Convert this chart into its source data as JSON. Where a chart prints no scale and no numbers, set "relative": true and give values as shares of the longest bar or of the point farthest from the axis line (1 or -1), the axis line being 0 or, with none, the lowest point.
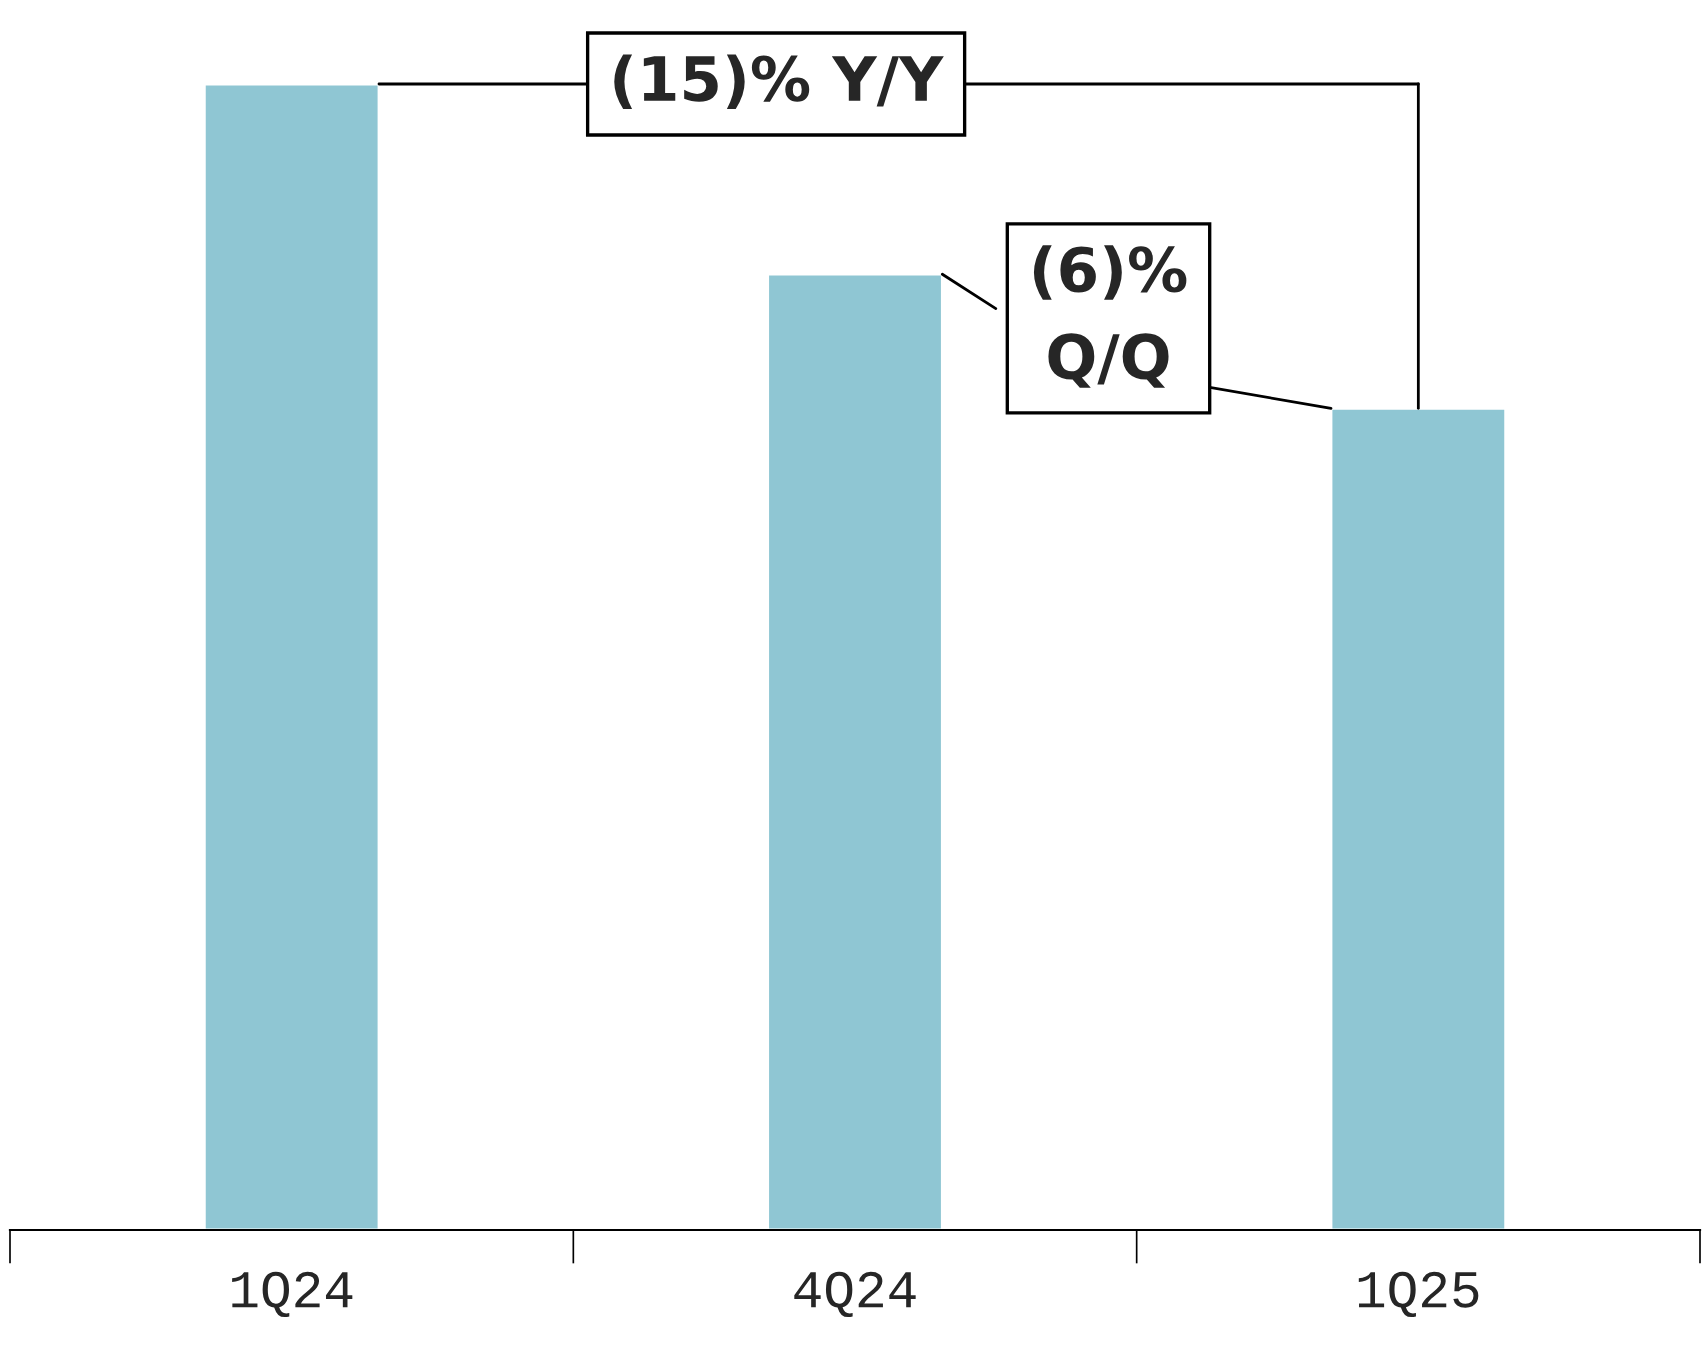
{
  "chart_data": {
    "type": "bar",
    "relative": true,
    "categories": [
      "1Q24",
      "4Q24",
      "1Q25"
    ],
    "values": [
      1,
      0.834,
      0.717
    ],
    "color": "#8fc6d3",
    "annotations": [
      "(15)% Y/Y",
      "(6)%\nQ/Q"
    ]
  }
}
